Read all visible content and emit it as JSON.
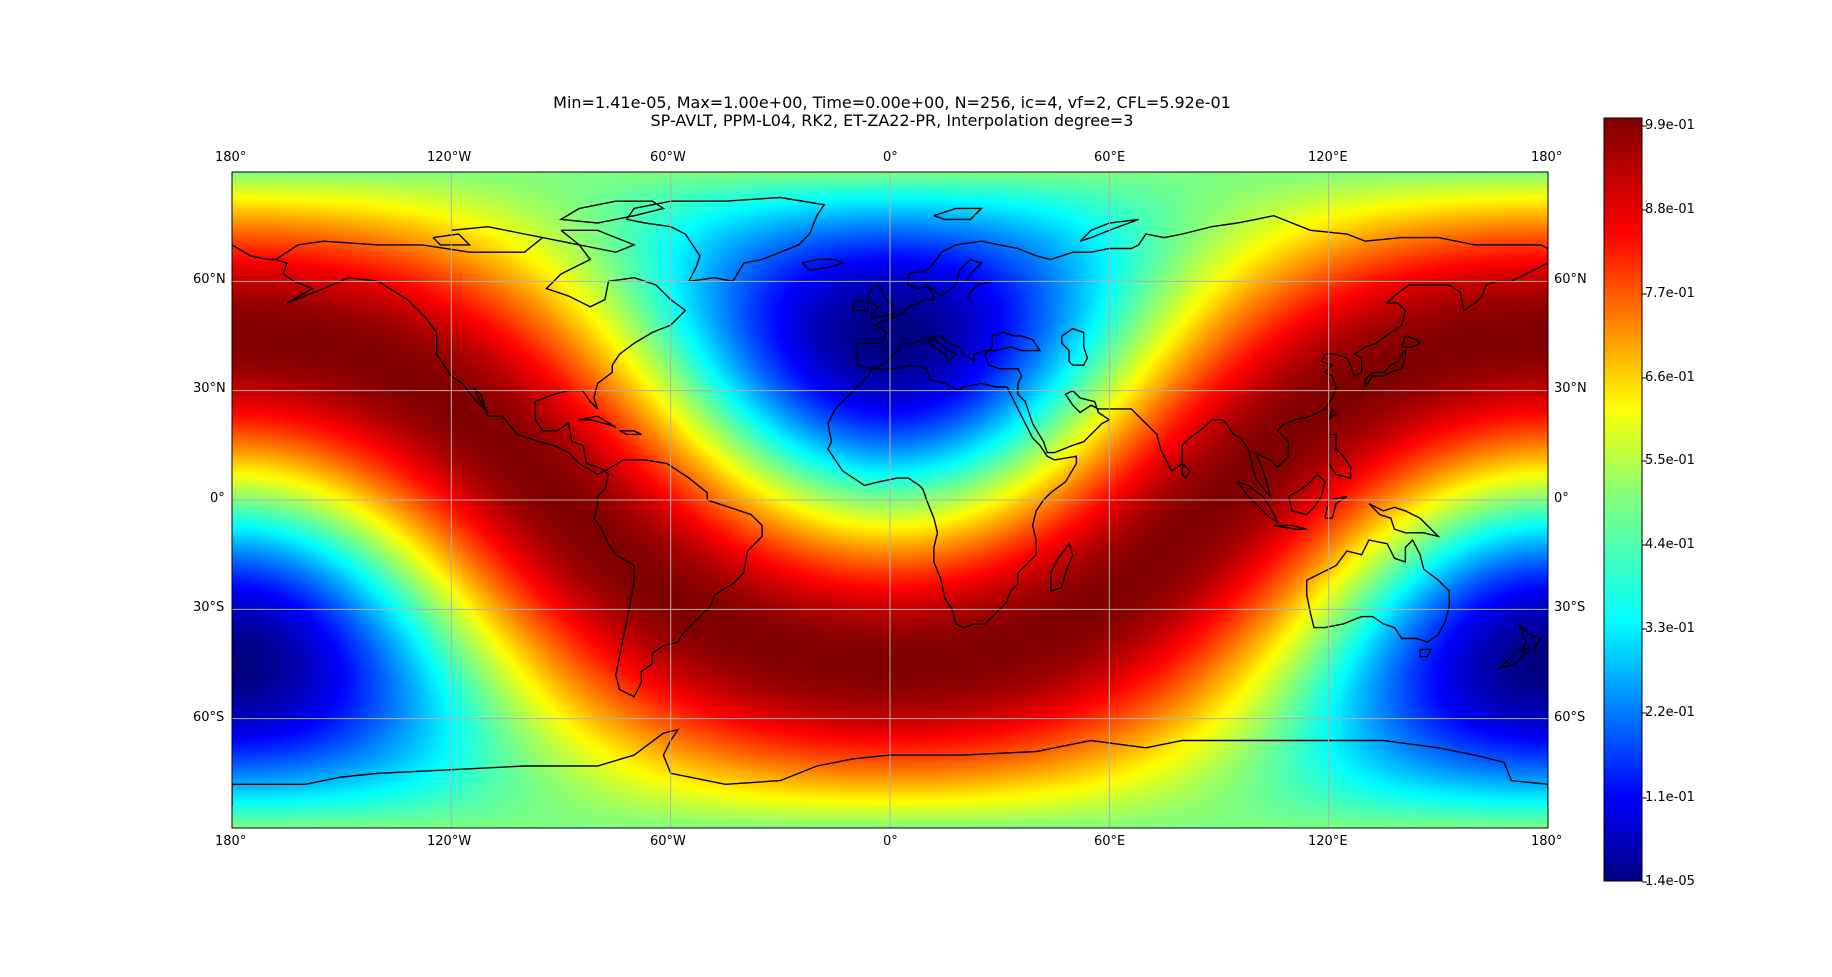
{
  "title": {
    "line1": "Min=1.41e-05, Max=1.00e+00, Time=0.00e+00, N=256, ic=4, vf=2, CFL=5.92e-01",
    "line2": "SP-AVLT, PPM-L04, RK2, ET-ZA22-PR, Interpolation degree=3"
  },
  "map": {
    "projection": "PlateCarree",
    "colormap": "jet",
    "coastlines": true,
    "gridlines": true,
    "lon_ticks": [
      "180°",
      "120°W",
      "60°W",
      "0°",
      "60°E",
      "120°E",
      "180°"
    ],
    "lat_ticks": [
      "60°N",
      "30°N",
      "0°",
      "30°S",
      "60°S"
    ],
    "field": {
      "description": "cosine bell pattern",
      "blobs": [
        {
          "lon": 0,
          "lat": 45,
          "value": 0.0
        },
        {
          "lon": 180,
          "lat": -45,
          "value": 0.0
        }
      ]
    }
  },
  "colorbar": {
    "labels": [
      "9.9e-01",
      "8.8e-01",
      "7.7e-01",
      "6.6e-01",
      "5.5e-01",
      "4.4e-01",
      "3.3e-01",
      "2.2e-01",
      "1.1e-01",
      "1.4e-05"
    ]
  }
}
